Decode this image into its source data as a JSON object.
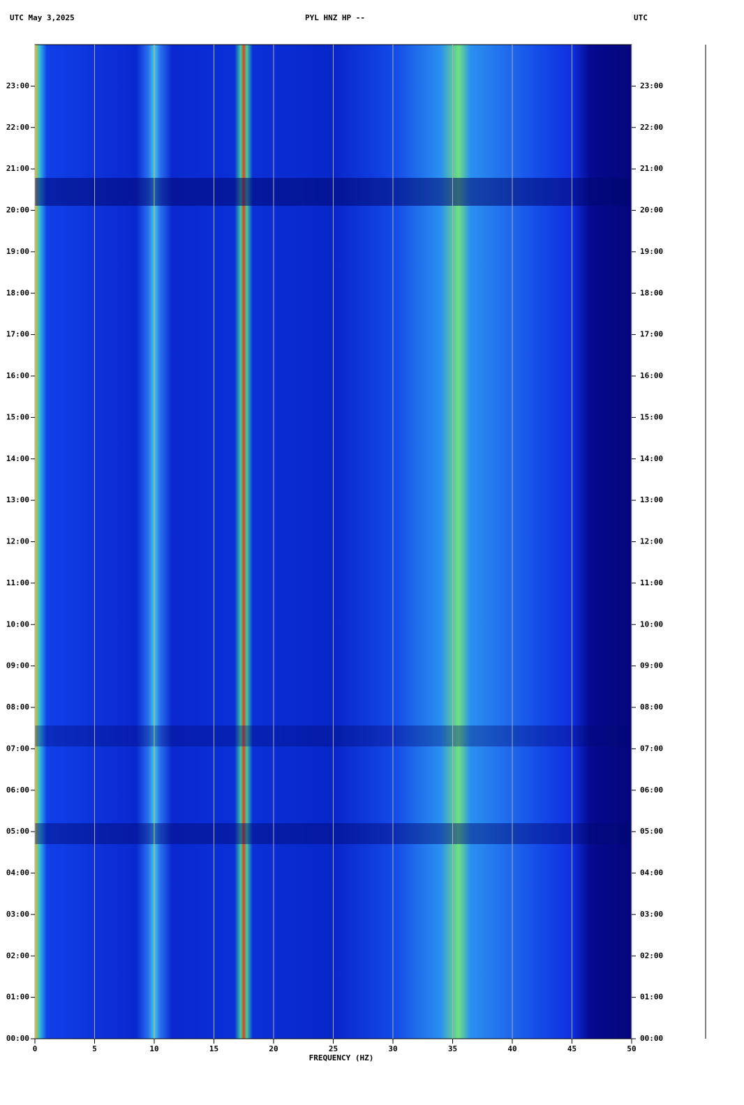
{
  "chart_data": {
    "type": "spectrogram",
    "title": "PYL HNZ HP --",
    "left_header": "UTC  May 3,2025",
    "right_header": "UTC",
    "x_label": "FREQUENCY (HZ)",
    "xlim": [
      0,
      50
    ],
    "xticks": [
      0,
      5,
      10,
      15,
      20,
      25,
      30,
      35,
      40,
      45,
      50
    ],
    "ylim": [
      0,
      24
    ],
    "yticks": [
      {
        "value": 0,
        "label": "00:00"
      },
      {
        "value": 1,
        "label": "01:00"
      },
      {
        "value": 2,
        "label": "02:00"
      },
      {
        "value": 3,
        "label": "03:00"
      },
      {
        "value": 4,
        "label": "04:00"
      },
      {
        "value": 5,
        "label": "05:00"
      },
      {
        "value": 6,
        "label": "06:00"
      },
      {
        "value": 7,
        "label": "07:00"
      },
      {
        "value": 8,
        "label": "08:00"
      },
      {
        "value": 9,
        "label": "09:00"
      },
      {
        "value": 10,
        "label": "10:00"
      },
      {
        "value": 11,
        "label": "11:00"
      },
      {
        "value": 12,
        "label": "12:00"
      },
      {
        "value": 13,
        "label": "13:00"
      },
      {
        "value": 14,
        "label": "14:00"
      },
      {
        "value": 15,
        "label": "15:00"
      },
      {
        "value": 16,
        "label": "16:00"
      },
      {
        "value": 17,
        "label": "17:00"
      },
      {
        "value": 18,
        "label": "18:00"
      },
      {
        "value": 19,
        "label": "19:00"
      },
      {
        "value": 20,
        "label": "20:00"
      },
      {
        "value": 21,
        "label": "21:00"
      },
      {
        "value": 22,
        "label": "22:00"
      },
      {
        "value": 23,
        "label": "23:00"
      }
    ],
    "grid": true
  }
}
